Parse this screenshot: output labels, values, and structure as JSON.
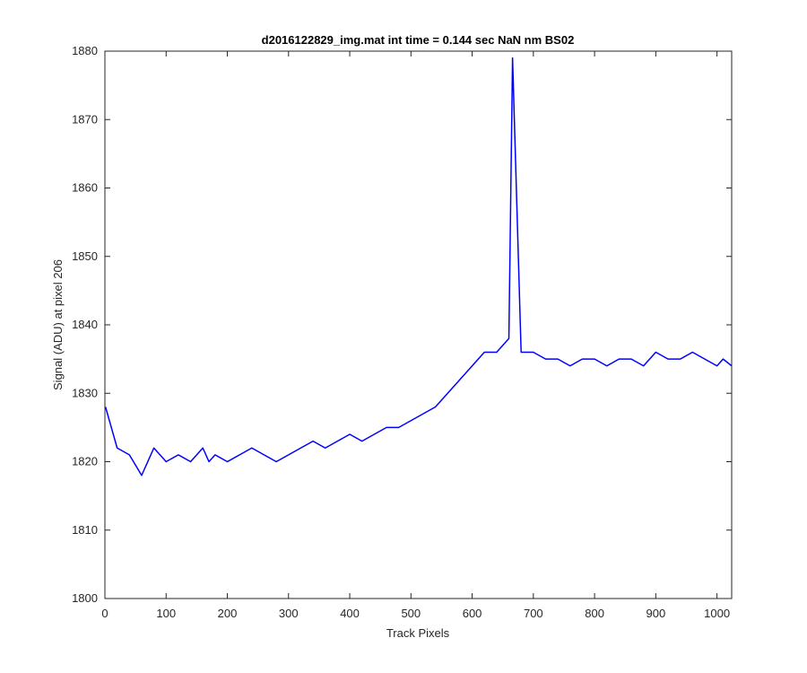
{
  "chart_data": {
    "type": "line",
    "title": "d2016122829_img.mat int time = 0.144 sec  NaN nm BS02",
    "xlabel": "Track Pixels",
    "ylabel": "Signal (ADU) at pixel 206",
    "xlim": [
      0,
      1024
    ],
    "ylim": [
      1800,
      1880
    ],
    "xticks": [
      0,
      100,
      200,
      300,
      400,
      500,
      600,
      700,
      800,
      900,
      1000
    ],
    "yticks": [
      1800,
      1810,
      1820,
      1830,
      1840,
      1850,
      1860,
      1870,
      1880
    ],
    "grid": false,
    "series": [
      {
        "color": "#0000ff",
        "x": [
          1,
          20,
          40,
          60,
          80,
          100,
          120,
          140,
          160,
          170,
          180,
          200,
          220,
          240,
          260,
          280,
          300,
          320,
          340,
          360,
          380,
          400,
          420,
          440,
          460,
          480,
          500,
          520,
          540,
          560,
          580,
          600,
          620,
          640,
          660,
          666,
          680,
          700,
          720,
          740,
          760,
          780,
          800,
          820,
          840,
          860,
          880,
          900,
          920,
          940,
          960,
          980,
          1000,
          1010,
          1024
        ],
        "y": [
          1828,
          1822,
          1821,
          1818,
          1822,
          1820,
          1821,
          1820,
          1822,
          1820,
          1821,
          1820,
          1821,
          1822,
          1821,
          1820,
          1821,
          1822,
          1823,
          1822,
          1823,
          1824,
          1823,
          1824,
          1825,
          1825,
          1826,
          1827,
          1828,
          1830,
          1832,
          1834,
          1836,
          1836,
          1838,
          1879,
          1836,
          1836,
          1835,
          1835,
          1834,
          1835,
          1835,
          1834,
          1835,
          1835,
          1834,
          1836,
          1835,
          1835,
          1836,
          1835,
          1834,
          1835,
          1834
        ]
      }
    ]
  }
}
